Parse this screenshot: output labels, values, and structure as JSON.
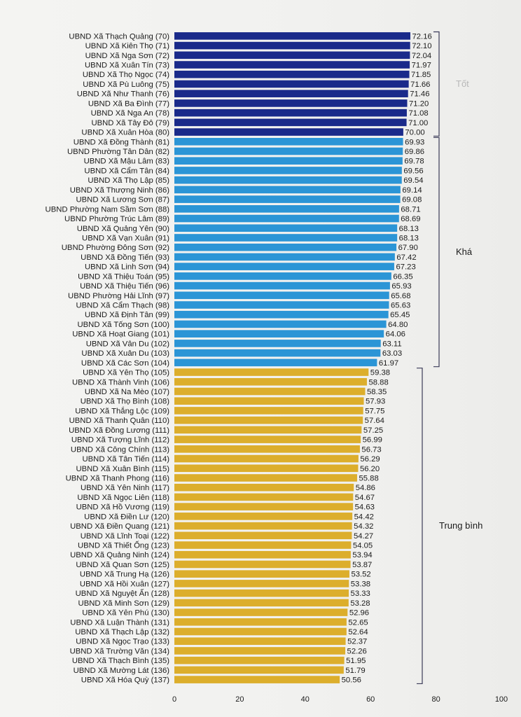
{
  "chart_data": {
    "type": "bar",
    "orientation": "horizontal",
    "title": "",
    "xlabel": "",
    "ylabel": "",
    "xlim": [
      0,
      100
    ],
    "xticks": [
      0,
      20,
      40,
      60,
      80,
      100
    ],
    "grid": false,
    "legend": "none",
    "categories": [
      "UBND Xã Thạch Quảng (70)",
      "UBND Xã Kiên Thọ (71)",
      "UBND Xã Nga Sơn (72)",
      "UBND Xã Xuân Tín (73)",
      "UBND Xã Thọ Ngọc (74)",
      "UBND Xã Pù Luông (75)",
      "UBND Xã Như Thanh (76)",
      "UBND Xã Ba Đình (77)",
      "UBND Xã Nga An (78)",
      "UBND Xã Tây Đô (79)",
      "UBND Xã Xuân Hòa (80)",
      "UBND Xã Đồng Thành (81)",
      "UBND Phường Tân Dân (82)",
      "UBND Xã Mậu Lâm (83)",
      "UBND Xã Cẩm Tân (84)",
      "UBND Xã Thọ Lập (85)",
      "UBND Xã Thượng Ninh (86)",
      "UBND Xã Lương Sơn (87)",
      "UBND Phường Nam Sầm Sơn (88)",
      "UBND Phường Trúc Lâm (89)",
      "UBND Xã Quảng Yên (90)",
      "UBND Xã Vạn Xuân (91)",
      "UBND Phường Đông Sơn (92)",
      "UBND Xã Đồng Tiến (93)",
      "UBND Xã Linh Sơn (94)",
      "UBND Xã Thiệu Toán (95)",
      "UBND Xã Thiệu Tiến (96)",
      "UBND Phường Hải Lĩnh (97)",
      "UBND Xã Cẩm Thạch (98)",
      "UBND Xã Định Tân (99)",
      "UBND Xã Tống Sơn (100)",
      "UBND Xã Hoạt Giang (101)",
      "UBND Xã Vân Du (102)",
      "UBND Xã Xuân Du (103)",
      "UBND Xã Các Sơn (104)",
      "UBND Xã Yên Thọ (105)",
      "UBND Xã Thành Vinh (106)",
      "UBND Xã Na Mèo (107)",
      "UBND Xã Thọ Bình (108)",
      "UBND Xã Thắng Lộc (109)",
      "UBND Xã Thanh Quân (110)",
      "UBND Xã Đồng Lương (111)",
      "UBND Xã Tượng Lĩnh (112)",
      "UBND Xã Công Chính (113)",
      "UBND Xã Tân Tiến (114)",
      "UBND Xã Xuân Bình (115)",
      "UBND Xã Thanh Phong (116)",
      "UBND Xã Yên Ninh (117)",
      "UBND Xã Ngọc Liên (118)",
      "UBND Xã Hồ Vương (119)",
      "UBND Xã Điền Lư (120)",
      "UBND Xã Điền Quang (121)",
      "UBND Xã Lĩnh Toại (122)",
      "UBND Xã Thiết Ống (123)",
      "UBND Xã Quảng Ninh (124)",
      "UBND Xã Quan Sơn (125)",
      "UBND Xã Trung Hạ (126)",
      "UBND Xã Hồi Xuân (127)",
      "UBND Xã Nguyệt Ấn (128)",
      "UBND Xã Minh Sơn (129)",
      "UBND Xã Yên Phú (130)",
      "UBND Xã Luận Thành (131)",
      "UBND Xã Thạch Lập (132)",
      "UBND Xã Ngọc Trạo (133)",
      "UBND Xã Trường Văn (134)",
      "UBND Xã Thạch Bình (135)",
      "UBND Xã Mường Lát (136)",
      "UBND Xã Hóa Quỳ (137)"
    ],
    "values": [
      72.16,
      72.1,
      72.04,
      71.97,
      71.85,
      71.66,
      71.46,
      71.2,
      71.08,
      71.0,
      70.0,
      69.93,
      69.86,
      69.78,
      69.56,
      69.54,
      69.14,
      69.08,
      68.71,
      68.69,
      68.13,
      68.13,
      67.9,
      67.42,
      67.23,
      66.35,
      65.93,
      65.68,
      65.63,
      65.45,
      64.8,
      64.06,
      63.11,
      63.03,
      61.97,
      59.38,
      58.88,
      58.35,
      57.93,
      57.75,
      57.64,
      57.25,
      56.99,
      56.73,
      56.29,
      56.2,
      55.88,
      54.86,
      54.67,
      54.63,
      54.42,
      54.32,
      54.27,
      54.05,
      53.94,
      53.87,
      53.52,
      53.38,
      53.33,
      53.28,
      52.96,
      52.65,
      52.64,
      52.37,
      52.26,
      51.95,
      51.79,
      50.56
    ],
    "value_labels": [
      "72.16",
      "72.10",
      "72.04",
      "71.97",
      "71.85",
      "71.66",
      "71.46",
      "71.20",
      "71.08",
      "71.00",
      "70.00",
      "69.93",
      "69.86",
      "69.78",
      "69.56",
      "69.54",
      "69.14",
      "69.08",
      "68.71",
      "68.69",
      "68.13",
      "68.13",
      "67.90",
      "67.42",
      "67.23",
      "66.35",
      "65.93",
      "65.68",
      "65.63",
      "65.45",
      "64.80",
      "64.06",
      "63.11",
      "63.03",
      "61.97",
      "59.38",
      "58.88",
      "58.35",
      "57.93",
      "57.75",
      "57.64",
      "57.25",
      "56.99",
      "56.73",
      "56.29",
      "56.20",
      "55.88",
      "54.86",
      "54.67",
      "54.63",
      "54.42",
      "54.32",
      "54.27",
      "54.05",
      "53.94",
      "53.87",
      "53.52",
      "53.38",
      "53.33",
      "53.28",
      "52.96",
      "52.65",
      "52.64",
      "52.37",
      "52.26",
      "51.95",
      "51.79",
      "50.56"
    ],
    "groups": [
      {
        "label": "Tốt",
        "start": 0,
        "end": 10,
        "color": "#1a2a8a",
        "label_color": "#b8b8b8"
      },
      {
        "label": "Khá",
        "start": 11,
        "end": 34,
        "color": "#2b95d6",
        "label_color": "#1b1b1b"
      },
      {
        "label": "Trung bình",
        "start": 35,
        "end": 67,
        "color": "#dcae2c",
        "label_color": "#1b1b1b"
      }
    ]
  }
}
